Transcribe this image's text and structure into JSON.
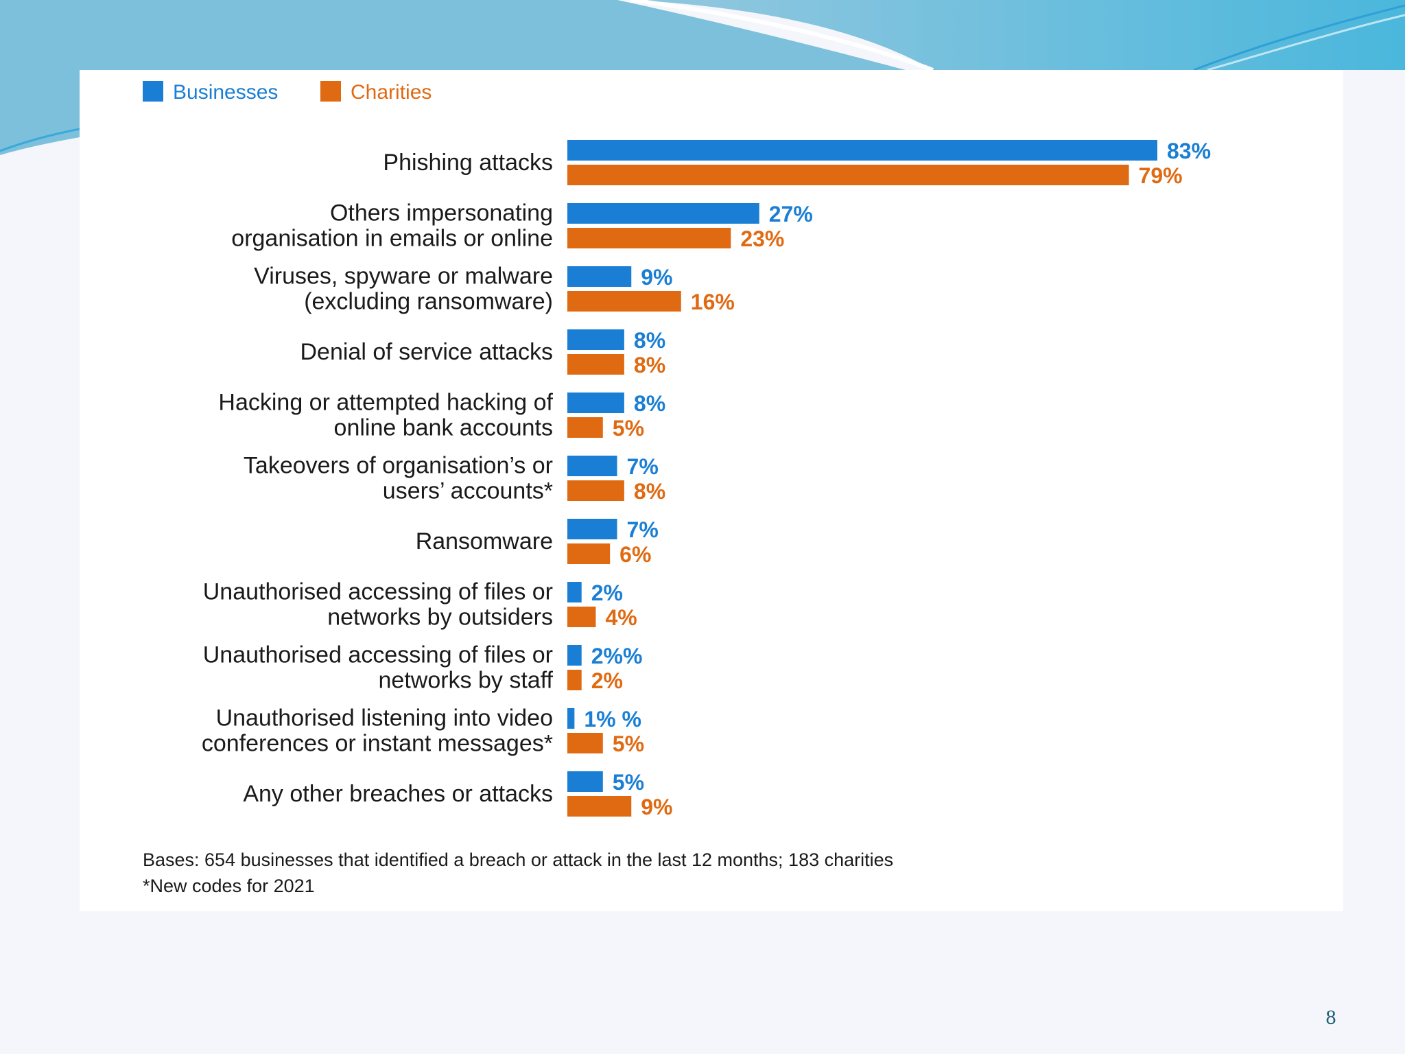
{
  "slide": {
    "page_number": "8",
    "colors": {
      "businesses": "#1a7fd4",
      "charities": "#e06a12",
      "label_text": "#1a1a1a",
      "banner_top": "#7fc6e2",
      "banner_accent": "#36b6e0"
    }
  },
  "chart_data": {
    "type": "bar",
    "orientation": "horizontal",
    "legend_position": "top-left",
    "grid": false,
    "xlim": [
      0,
      83
    ],
    "categories": [
      [
        "Phishing attacks"
      ],
      [
        "Others impersonating",
        "organisation in emails or online"
      ],
      [
        "Viruses, spyware or malware",
        "(excluding ransomware)"
      ],
      [
        "Denial of service  attacks"
      ],
      [
        "Hacking or attempted hacking of",
        "online bank accounts"
      ],
      [
        "Takeovers  of organisation’s or",
        "users’ accounts*"
      ],
      [
        "Ransomware"
      ],
      [
        "Unauthorised accessing of files or",
        "networks by outsiders"
      ],
      [
        "Unauthorised accessing of files or",
        "networks by staff"
      ],
      [
        "Unauthorised listening into video",
        "conferences or instant messages*"
      ],
      [
        "Any other breaches or attacks"
      ]
    ],
    "series": [
      {
        "name": "Businesses",
        "color": "#1a7fd4",
        "values": [
          83,
          27,
          9,
          8,
          8,
          7,
          7,
          2,
          2,
          1,
          5
        ],
        "labels": [
          "83%",
          "27%",
          "9%",
          "8%",
          "8%",
          "7%",
          "7%",
          "2%",
          "2%%",
          "1%  %",
          "5%"
        ]
      },
      {
        "name": "Charities",
        "color": "#e06a12",
        "values": [
          79,
          23,
          16,
          8,
          5,
          8,
          6,
          4,
          2,
          5,
          9
        ],
        "labels": [
          "79%",
          "23%",
          "16%",
          "8%",
          "5%",
          "8%",
          "6%",
          "4%",
          "2%",
          "5%",
          "9%"
        ]
      }
    ],
    "footnotes": [
      "Bases: 654 businesses that identified a breach or attack in the last 12 months; 183 charities",
      "*New codes for 2021"
    ]
  }
}
